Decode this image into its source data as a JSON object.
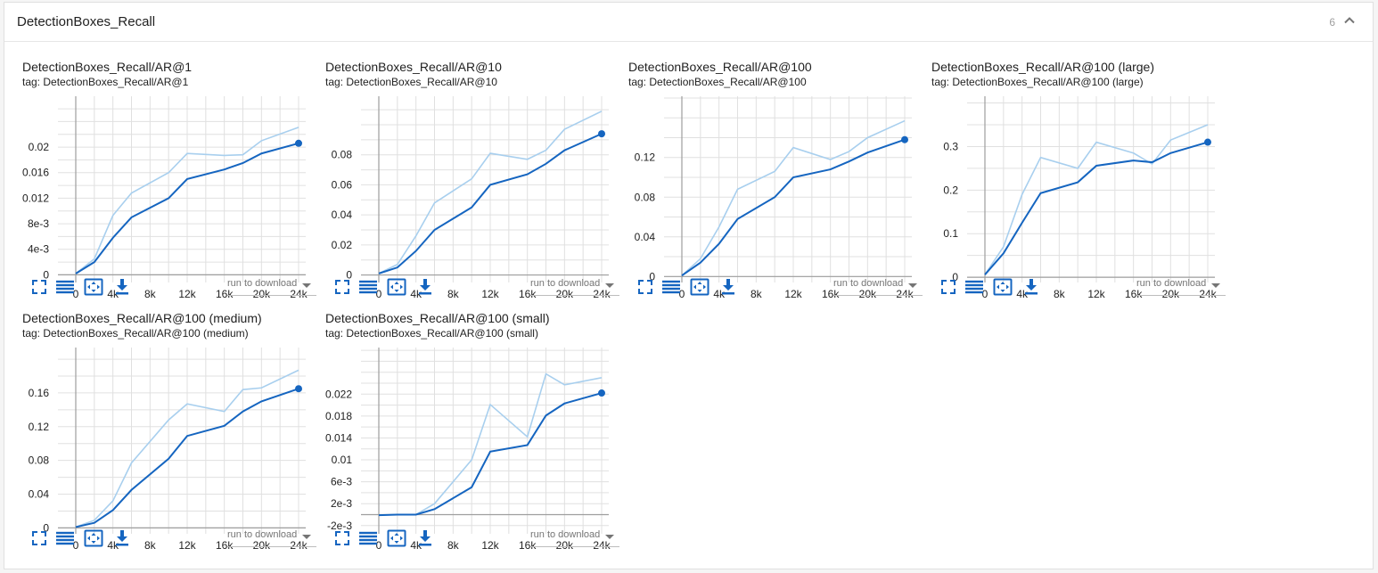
{
  "pane": {
    "title": "DetectionBoxes_Recall",
    "count": "6"
  },
  "colors": {
    "smoothed": "#1565c0",
    "raw": "#a8cfee",
    "grid": "#e0e0e0",
    "axis": "#9e9e9e"
  },
  "download_label": "run to download",
  "icons": [
    "fullscreen-icon",
    "list-icon",
    "fit-domain-icon",
    "download-icon"
  ],
  "chart_data": [
    {
      "type": "line",
      "title": "DetectionBoxes_Recall/AR@1",
      "tag": "tag: DetectionBoxes_Recall/AR@1",
      "xlim": [
        0,
        24000
      ],
      "ylim": [
        -0.0012,
        0.0235
      ],
      "grid": true,
      "xticks": [
        0,
        4000,
        8000,
        12000,
        16000,
        20000,
        24000
      ],
      "xtick_labels": [
        "0",
        "4k",
        "8k",
        "12k",
        "16k",
        "20k",
        "24k"
      ],
      "yticks": [
        0,
        0.004,
        0.008,
        0.012,
        0.016,
        0.02
      ],
      "ytick_labels": [
        "0",
        "4e-3",
        "8e-3",
        "0.012",
        "0.016",
        "0.02"
      ],
      "series": [
        {
          "style": "raw",
          "x": [
            0,
            2000,
            4000,
            6000,
            10000,
            12000,
            16000,
            18000,
            20000,
            24000
          ],
          "y": [
            0.0002,
            0.0025,
            0.0093,
            0.0128,
            0.016,
            0.019,
            0.0187,
            0.0188,
            0.021,
            0.0231
          ]
        },
        {
          "style": "smoothed",
          "x": [
            0,
            2000,
            4000,
            6000,
            10000,
            12000,
            16000,
            18000,
            20000,
            24000
          ],
          "y": [
            0.0002,
            0.002,
            0.0058,
            0.009,
            0.012,
            0.015,
            0.0165,
            0.0175,
            0.019,
            0.0206
          ]
        }
      ]
    },
    {
      "type": "line",
      "title": "DetectionBoxes_Recall/AR@10",
      "tag": "tag: DetectionBoxes_Recall/AR@10",
      "xlim": [
        0,
        24000
      ],
      "ylim": [
        -0.005,
        0.1
      ],
      "grid": true,
      "xticks": [
        0,
        4000,
        8000,
        12000,
        16000,
        20000,
        24000
      ],
      "xtick_labels": [
        "0",
        "4k",
        "8k",
        "12k",
        "16k",
        "20k",
        "24k"
      ],
      "yticks": [
        0,
        0.02,
        0.04,
        0.06,
        0.08
      ],
      "ytick_labels": [
        "0",
        "0.02",
        "0.04",
        "0.06",
        "0.08"
      ],
      "series": [
        {
          "style": "raw",
          "x": [
            0,
            2000,
            4000,
            6000,
            10000,
            12000,
            16000,
            18000,
            20000,
            24000
          ],
          "y": [
            0.001,
            0.007,
            0.026,
            0.048,
            0.064,
            0.081,
            0.077,
            0.083,
            0.097,
            0.109
          ]
        },
        {
          "style": "smoothed",
          "x": [
            0,
            2000,
            4000,
            6000,
            10000,
            12000,
            16000,
            18000,
            20000,
            24000
          ],
          "y": [
            0.001,
            0.005,
            0.016,
            0.03,
            0.045,
            0.06,
            0.067,
            0.074,
            0.083,
            0.094
          ]
        }
      ]
    },
    {
      "type": "line",
      "title": "DetectionBoxes_Recall/AR@100",
      "tag": "tag: DetectionBoxes_Recall/AR@100",
      "xlim": [
        0,
        24000
      ],
      "ylim": [
        -0.006,
        0.153
      ],
      "grid": true,
      "xticks": [
        0,
        4000,
        8000,
        12000,
        16000,
        20000,
        24000
      ],
      "xtick_labels": [
        "0",
        "4k",
        "8k",
        "12k",
        "16k",
        "20k",
        "24k"
      ],
      "yticks": [
        0,
        0.04,
        0.08,
        0.12
      ],
      "ytick_labels": [
        "0",
        "0.04",
        "0.08",
        "0.12"
      ],
      "series": [
        {
          "style": "raw",
          "x": [
            0,
            2000,
            4000,
            6000,
            10000,
            12000,
            16000,
            18000,
            20000,
            24000
          ],
          "y": [
            0.001,
            0.018,
            0.05,
            0.088,
            0.106,
            0.13,
            0.118,
            0.126,
            0.14,
            0.157
          ]
        },
        {
          "style": "smoothed",
          "x": [
            0,
            2000,
            4000,
            6000,
            10000,
            12000,
            16000,
            18000,
            20000,
            24000
          ],
          "y": [
            0.001,
            0.014,
            0.033,
            0.058,
            0.08,
            0.1,
            0.108,
            0.116,
            0.125,
            0.138
          ]
        }
      ]
    },
    {
      "type": "line",
      "title": "DetectionBoxes_Recall/AR@100 (large)",
      "tag": "tag: DetectionBoxes_Recall/AR@100 (large)",
      "xlim": [
        0,
        24000
      ],
      "ylim": [
        -0.012,
        0.35
      ],
      "grid": true,
      "xticks": [
        0,
        4000,
        8000,
        12000,
        16000,
        20000,
        24000
      ],
      "xtick_labels": [
        "0",
        "4k",
        "8k",
        "12k",
        "16k",
        "20k",
        "24k"
      ],
      "yticks": [
        0,
        0.1,
        0.2,
        0.3
      ],
      "ytick_labels": [
        "0",
        "0.1",
        "0.2",
        "0.3"
      ],
      "series": [
        {
          "style": "raw",
          "x": [
            0,
            2000,
            4000,
            6000,
            10000,
            12000,
            16000,
            18000,
            20000,
            24000
          ],
          "y": [
            0.006,
            0.07,
            0.19,
            0.275,
            0.25,
            0.31,
            0.285,
            0.26,
            0.315,
            0.35
          ]
        },
        {
          "style": "smoothed",
          "x": [
            0,
            2000,
            4000,
            6000,
            10000,
            12000,
            16000,
            18000,
            20000,
            24000
          ],
          "y": [
            0.006,
            0.055,
            0.125,
            0.193,
            0.218,
            0.256,
            0.268,
            0.264,
            0.285,
            0.31
          ]
        }
      ]
    },
    {
      "type": "line",
      "title": "DetectionBoxes_Recall/AR@100 (medium)",
      "tag": "tag: DetectionBoxes_Recall/AR@100 (medium)",
      "xlim": [
        0,
        24000
      ],
      "ylim": [
        -0.007,
        0.18
      ],
      "grid": true,
      "xticks": [
        0,
        4000,
        8000,
        12000,
        16000,
        20000,
        24000
      ],
      "xtick_labels": [
        "0",
        "4k",
        "8k",
        "12k",
        "16k",
        "20k",
        "24k"
      ],
      "yticks": [
        0,
        0.04,
        0.08,
        0.12,
        0.16
      ],
      "ytick_labels": [
        "0",
        "0.04",
        "0.08",
        "0.12",
        "0.16"
      ],
      "series": [
        {
          "style": "raw",
          "x": [
            0,
            2000,
            4000,
            6000,
            10000,
            12000,
            16000,
            18000,
            20000,
            24000
          ],
          "y": [
            0.001,
            0.009,
            0.032,
            0.077,
            0.128,
            0.147,
            0.138,
            0.164,
            0.166,
            0.187
          ]
        },
        {
          "style": "smoothed",
          "x": [
            0,
            2000,
            4000,
            6000,
            10000,
            12000,
            16000,
            18000,
            20000,
            24000
          ],
          "y": [
            0.001,
            0.006,
            0.021,
            0.045,
            0.082,
            0.109,
            0.121,
            0.138,
            0.15,
            0.165
          ]
        }
      ]
    },
    {
      "type": "line",
      "title": "DetectionBoxes_Recall/AR@100 (small)",
      "tag": "tag: DetectionBoxes_Recall/AR@100 (small)",
      "xlim": [
        0,
        24000
      ],
      "ylim": [
        -0.0035,
        0.0253
      ],
      "grid": true,
      "xticks": [
        0,
        4000,
        8000,
        12000,
        16000,
        20000,
        24000
      ],
      "xtick_labels": [
        "0",
        "4k",
        "8k",
        "12k",
        "16k",
        "20k",
        "24k"
      ],
      "yticks": [
        -0.002,
        0.002,
        0.006,
        0.01,
        0.014,
        0.018,
        0.022
      ],
      "ytick_labels": [
        "-2e-3",
        "2e-3",
        "6e-3",
        "0.01",
        "0.014",
        "0.018",
        "0.022"
      ],
      "series": [
        {
          "style": "raw",
          "x": [
            0,
            2000,
            4000,
            6000,
            10000,
            12000,
            16000,
            18000,
            20000,
            24000
          ],
          "y": [
            -0.0001,
            0,
            0,
            0.002,
            0.01,
            0.0201,
            0.0142,
            0.0257,
            0.0237,
            0.025
          ]
        },
        {
          "style": "smoothed",
          "x": [
            0,
            2000,
            4000,
            6000,
            10000,
            12000,
            16000,
            18000,
            20000,
            24000
          ],
          "y": [
            -0.0001,
            0,
            0,
            0.001,
            0.005,
            0.0115,
            0.0127,
            0.0181,
            0.0203,
            0.0222
          ]
        }
      ]
    }
  ]
}
